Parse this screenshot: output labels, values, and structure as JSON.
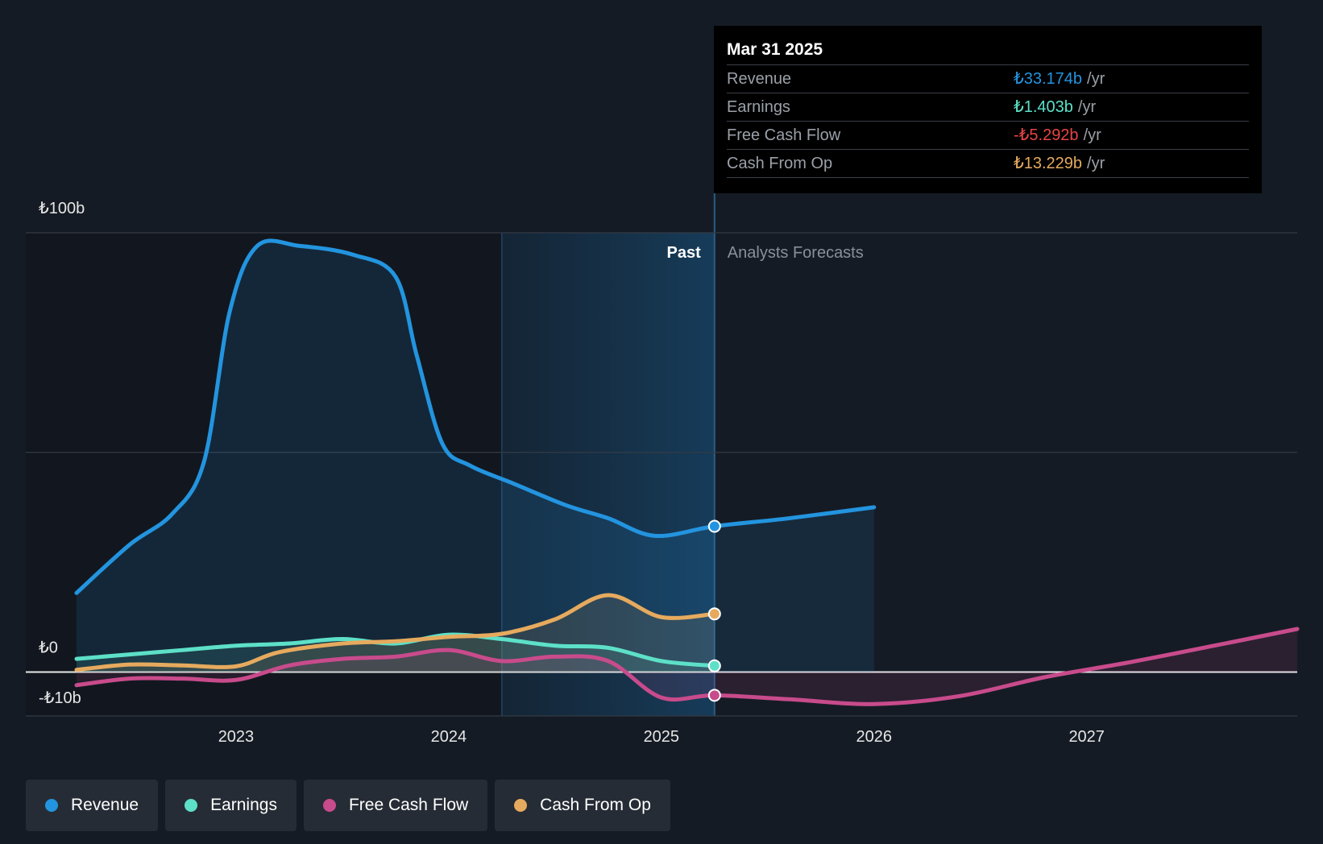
{
  "chart_data": {
    "type": "line",
    "y_axis": {
      "ticks": [
        {
          "value": 100,
          "label": "₺100b"
        },
        {
          "value": 0,
          "label": "₺0"
        },
        {
          "value": -10,
          "label": "-₺10b"
        }
      ],
      "ylim": [
        -10,
        100
      ],
      "gridlines": [
        100,
        50,
        0,
        -10
      ]
    },
    "x_axis": {
      "ticks": [
        "2023",
        "2024",
        "2025",
        "2026",
        "2027"
      ],
      "xlim": [
        2022.25,
        2027.99
      ]
    },
    "regions": {
      "past_label": "Past",
      "forecast_label": "Analysts Forecasts",
      "highlight_start": 2024.25,
      "divider": 2025.25
    },
    "series": [
      {
        "name": "Revenue",
        "color": "#2394df",
        "fill": true,
        "end_marker": 2025.25,
        "x": [
          2022.25,
          2022.5,
          2022.7,
          2022.85,
          2022.97,
          2023.1,
          2023.3,
          2023.55,
          2023.75,
          2023.85,
          2023.97,
          2024.1,
          2024.3,
          2024.55,
          2024.75,
          2024.97,
          2025.25,
          2025.6,
          2026.0
        ],
        "y": [
          18,
          29,
          36,
          48,
          82,
          97,
          97,
          95,
          90,
          72,
          52,
          47,
          43,
          38,
          35,
          31,
          33.174,
          35,
          37.5
        ]
      },
      {
        "name": "Earnings",
        "color": "#5de0c8",
        "fill": true,
        "end_marker": 2025.25,
        "x": [
          2022.25,
          2022.5,
          2022.75,
          2023.0,
          2023.25,
          2023.5,
          2023.75,
          2024.0,
          2024.25,
          2024.5,
          2024.75,
          2025.0,
          2025.25
        ],
        "y": [
          3,
          4,
          5,
          6,
          6.5,
          7.5,
          6.5,
          8.5,
          7.5,
          6,
          5.5,
          2.5,
          1.403
        ]
      },
      {
        "name": "Free Cash Flow",
        "color": "#c84b8c",
        "fill": true,
        "end_marker": 2025.25,
        "x": [
          2022.25,
          2022.5,
          2022.75,
          2023.0,
          2023.25,
          2023.5,
          2023.75,
          2024.0,
          2024.25,
          2024.5,
          2024.75,
          2025.0,
          2025.25,
          2025.6,
          2026.0,
          2026.4,
          2026.8,
          2027.2,
          2027.6,
          2027.99
        ],
        "y": [
          -3,
          -1.5,
          -1.5,
          -1.8,
          1.5,
          3,
          3.5,
          5,
          2.5,
          3.5,
          2.5,
          -5.8,
          -5.292,
          -6.2,
          -7.3,
          -5.5,
          -1.2,
          2.2,
          6,
          9.8
        ]
      },
      {
        "name": "Cash From Op",
        "color": "#e6aa5e",
        "fill": true,
        "end_marker": 2025.25,
        "x": [
          2022.25,
          2022.5,
          2022.75,
          2023.0,
          2023.2,
          2023.5,
          2023.75,
          2024.0,
          2024.25,
          2024.5,
          2024.75,
          2025.0,
          2025.25
        ],
        "y": [
          0.5,
          1.7,
          1.5,
          1.3,
          4.5,
          6.5,
          7,
          8,
          8.7,
          12,
          17.5,
          12.5,
          13.229
        ]
      }
    ]
  },
  "tooltip": {
    "date": "Mar 31 2025",
    "rows": [
      {
        "label": "Revenue",
        "value": "₺33.174b",
        "unit": "/yr",
        "color": "#2394df"
      },
      {
        "label": "Earnings",
        "value": "₺1.403b",
        "unit": "/yr",
        "color": "#5de0c8"
      },
      {
        "label": "Free Cash Flow",
        "value": "-₺5.292b",
        "unit": "/yr",
        "color": "#e64545"
      },
      {
        "label": "Cash From Op",
        "value": "₺13.229b",
        "unit": "/yr",
        "color": "#e6aa5e"
      }
    ]
  },
  "legend": [
    {
      "label": "Revenue",
      "color": "#2394df"
    },
    {
      "label": "Earnings",
      "color": "#5de0c8"
    },
    {
      "label": "Free Cash Flow",
      "color": "#c84b8c"
    },
    {
      "label": "Cash From Op",
      "color": "#e6aa5e"
    }
  ]
}
